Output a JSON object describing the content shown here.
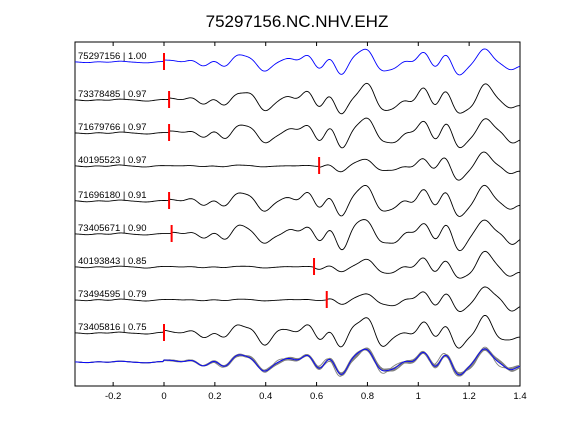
{
  "chart_data": {
    "type": "line",
    "title": "75297156.NC.NHV.EHZ",
    "xlabel": "",
    "ylabel": "",
    "xlim": [
      -0.35,
      1.4
    ],
    "xticks": [
      -0.2,
      0,
      0.2,
      0.4,
      0.6,
      0.8,
      1,
      1.2,
      1.4
    ],
    "xtick_labels": [
      "-0.2",
      "0",
      "0.2",
      "0.4",
      "0.6",
      "0.8",
      "1",
      "1.2",
      "1.4"
    ],
    "grid": false,
    "colors": {
      "reference": "#0000ff",
      "trace": "#000000",
      "pick": "#ff0000",
      "stack": "#7f7f7f"
    },
    "series": [
      {
        "name": "75297156 | 1.00",
        "pick": 0.0,
        "color": "#0000ff"
      },
      {
        "name": "73378485 | 0.97",
        "pick": 0.02,
        "color": "#000000"
      },
      {
        "name": "71679766 | 0.97",
        "pick": 0.02,
        "color": "#000000"
      },
      {
        "name": "40195523 | 0.97",
        "pick": 0.61,
        "color": "#000000"
      },
      {
        "name": "71696180 | 0.91",
        "pick": 0.02,
        "color": "#000000"
      },
      {
        "name": "73405671 | 0.90",
        "pick": 0.03,
        "color": "#000000"
      },
      {
        "name": "40193843 | 0.85",
        "pick": 0.59,
        "color": "#000000"
      },
      {
        "name": "73494595 | 0.79",
        "pick": 0.64,
        "color": "#000000"
      },
      {
        "name": "73405816 | 0.75",
        "pick": 0.0,
        "color": "#000000"
      }
    ]
  }
}
